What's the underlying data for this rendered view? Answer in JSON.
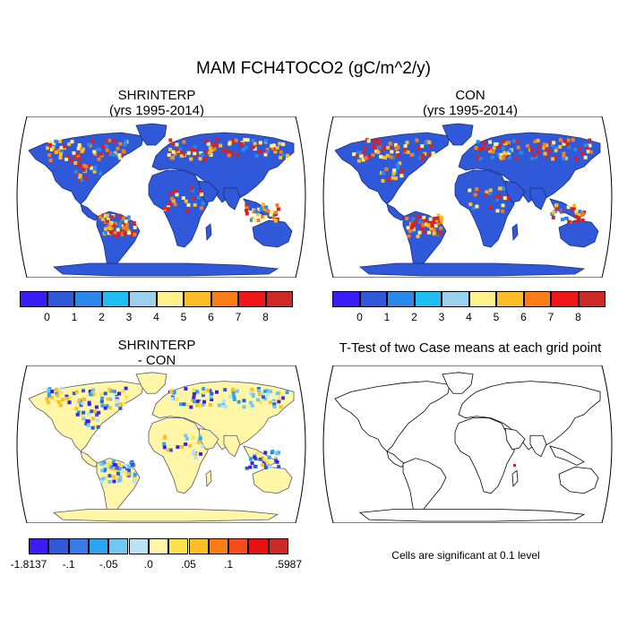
{
  "main_title": "MAM FCH4TOCO2 (gC/m^2/y)",
  "panels": {
    "top_left": {
      "line1": "SHRINTERP",
      "line2": "(yrs 1995-2014)"
    },
    "top_right": {
      "line1": "CON",
      "line2": "(yrs 1995-2014)"
    },
    "bottom_left": {
      "line1": "SHRINTERP",
      "line2": "- CON"
    },
    "bottom_right": {
      "line1": "T-Test of two Case means at each grid point"
    }
  },
  "colorbar_abs": {
    "colors": [
      "#3a1cf5",
      "#2f59d8",
      "#2b89ec",
      "#1fbff3",
      "#9bd1ec",
      "#fff18c",
      "#fbbf25",
      "#fb7d17",
      "#ee1616",
      "#cc2a26"
    ],
    "labels": [
      "0",
      "1",
      "2",
      "3",
      "4",
      "5",
      "6",
      "7",
      "8"
    ]
  },
  "colorbar_diff": {
    "colors": [
      "#3a1cf5",
      "#2f59d8",
      "#3a7ae8",
      "#2aa4f0",
      "#6fc7f3",
      "#b9e2f5",
      "#fff6a8",
      "#fde24e",
      "#fbbf25",
      "#fb7d17",
      "#f44c1a",
      "#e61010",
      "#cc2a26"
    ],
    "labels": [
      "-1.8137",
      "-.1",
      "-.05",
      ".0",
      ".05",
      ".1",
      ".5987"
    ]
  },
  "significance_note": "Cells are significant at 0.1 level",
  "map_legend": {
    "land_fill_abs": "#2f59d8",
    "land_fill_diff": "#fff6a8",
    "hotspot_color": "#ee1616",
    "warm_color": "#fb7d17"
  }
}
